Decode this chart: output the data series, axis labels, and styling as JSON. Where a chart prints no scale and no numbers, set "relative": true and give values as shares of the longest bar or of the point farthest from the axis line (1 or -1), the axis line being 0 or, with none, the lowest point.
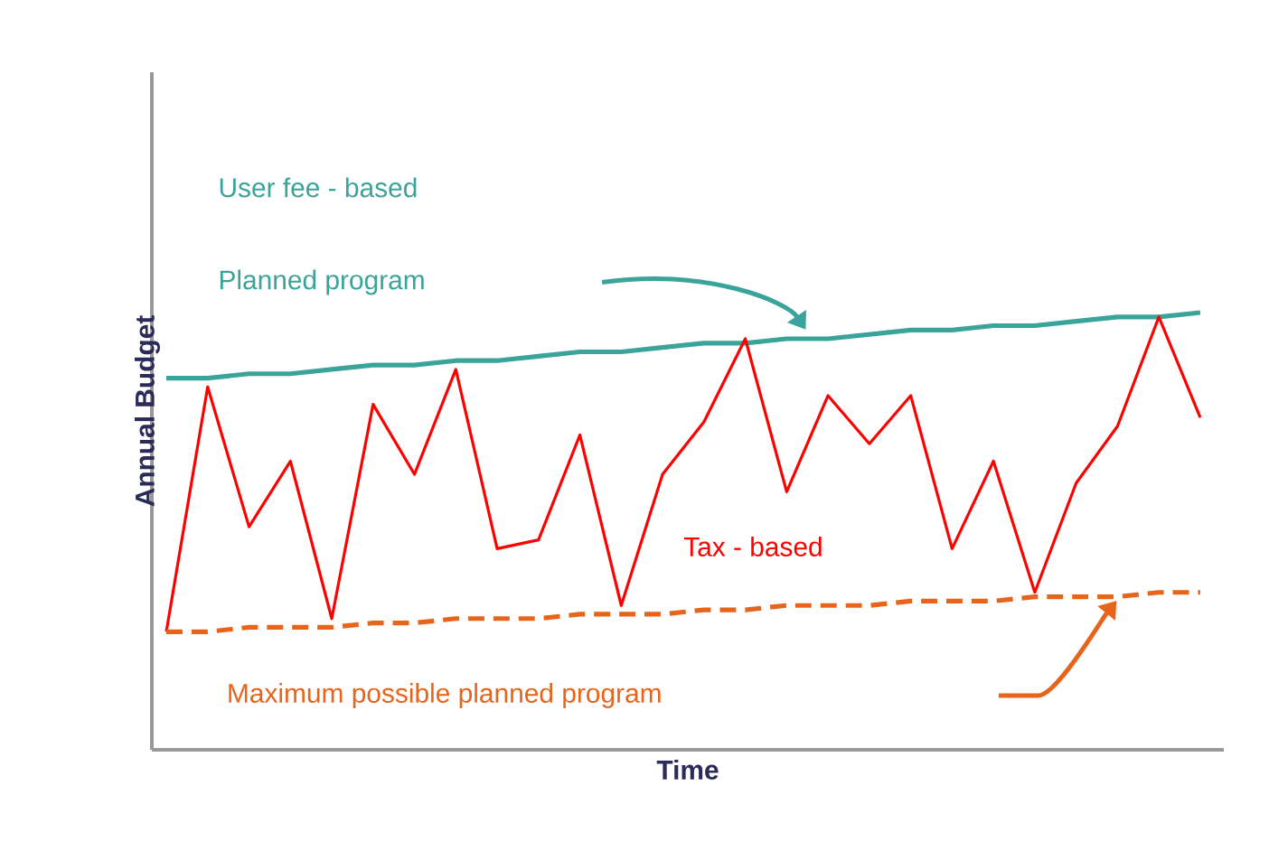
{
  "chart_data": {
    "type": "line",
    "relative": true,
    "xlabel": "Time",
    "ylabel": "Annual Budget",
    "annotations": [
      "User fee - based"
    ],
    "categories": [
      null,
      null,
      null,
      null,
      null,
      null,
      null,
      null,
      null,
      null,
      null,
      null,
      null,
      null,
      null,
      null,
      null,
      null,
      null,
      null,
      null,
      null,
      null,
      null,
      null,
      null
    ],
    "series": [
      {
        "name": "Planned program",
        "color": "#3aa39a",
        "line_style": "solid",
        "values": [
          0.85,
          0.85,
          0.86,
          0.86,
          0.87,
          0.88,
          0.88,
          0.89,
          0.89,
          0.9,
          0.91,
          0.91,
          0.92,
          0.93,
          0.93,
          0.94,
          0.94,
          0.95,
          0.96,
          0.96,
          0.97,
          0.97,
          0.98,
          0.99,
          0.99,
          1.0
        ]
      },
      {
        "name": "Tax - based",
        "color": "#ff0000",
        "line_style": "solid",
        "values": [
          0.27,
          0.83,
          0.51,
          0.66,
          0.3,
          0.79,
          0.63,
          0.87,
          0.46,
          0.48,
          0.72,
          0.33,
          0.63,
          0.75,
          0.94,
          0.59,
          0.81,
          0.7,
          0.81,
          0.46,
          0.66,
          0.36,
          0.61,
          0.74,
          0.99,
          0.76
        ]
      },
      {
        "name": "Maximum possible planned program",
        "color": "#e8641b",
        "line_style": "dashed",
        "values": [
          0.27,
          0.27,
          0.28,
          0.28,
          0.28,
          0.29,
          0.29,
          0.3,
          0.3,
          0.3,
          0.31,
          0.31,
          0.31,
          0.32,
          0.32,
          0.33,
          0.33,
          0.33,
          0.34,
          0.34,
          0.34,
          0.35,
          0.35,
          0.35,
          0.36,
          0.36
        ]
      }
    ]
  }
}
